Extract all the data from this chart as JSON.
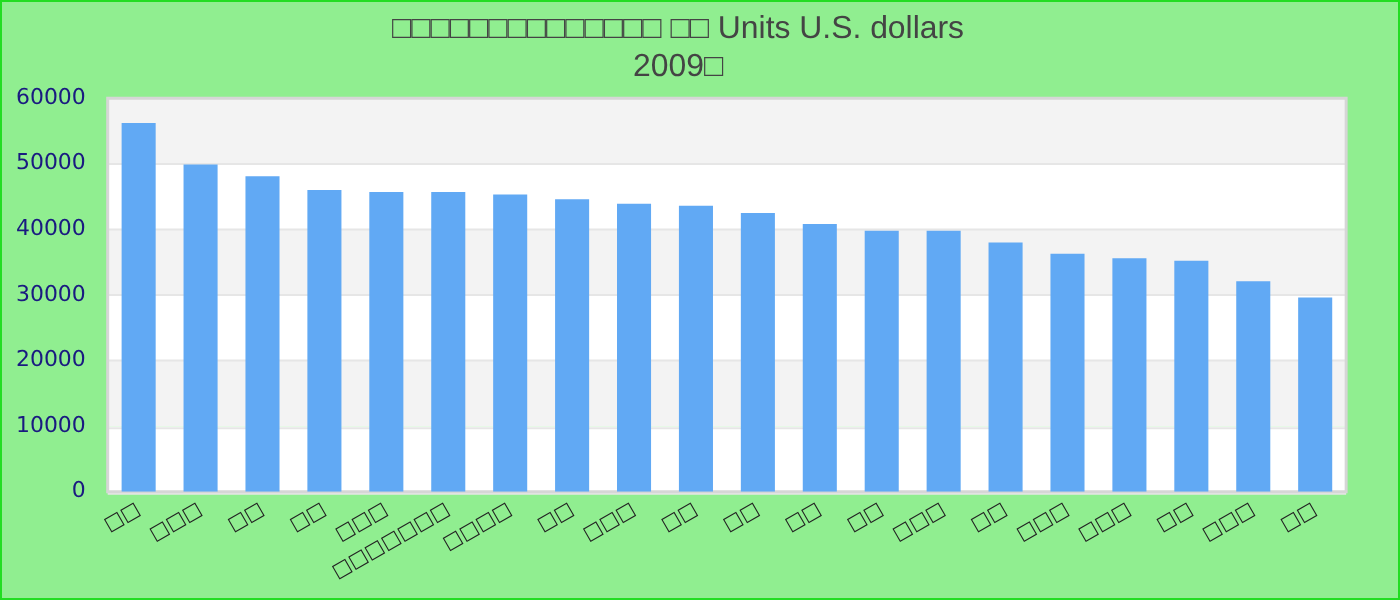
{
  "chart_data": {
    "type": "bar",
    "title": [
      "□□□□□□□□□□□□□□ □□ Units U.S. dollars",
      "2009□"
    ],
    "categories": [
      "□□",
      "□□□",
      "□□",
      "□□",
      "□□□",
      "□□□□□□□",
      "□□□□",
      "□□",
      "□□□",
      "□□",
      "□□",
      "□□",
      "□□",
      "□□□",
      "□□",
      "□□□",
      "□□□",
      "□□",
      "□□□",
      "□□"
    ],
    "values": [
      56200,
      49900,
      48100,
      46000,
      45700,
      45700,
      45300,
      44600,
      43900,
      43600,
      42500,
      40800,
      39800,
      39800,
      38000,
      36300,
      35600,
      35200,
      32100,
      29600
    ],
    "color": "#61a9f4",
    "ylim": [
      0,
      60000
    ],
    "yticks": [
      0,
      10000,
      20000,
      30000,
      40000,
      50000,
      60000
    ],
    "grid": "y",
    "legend": false
  }
}
